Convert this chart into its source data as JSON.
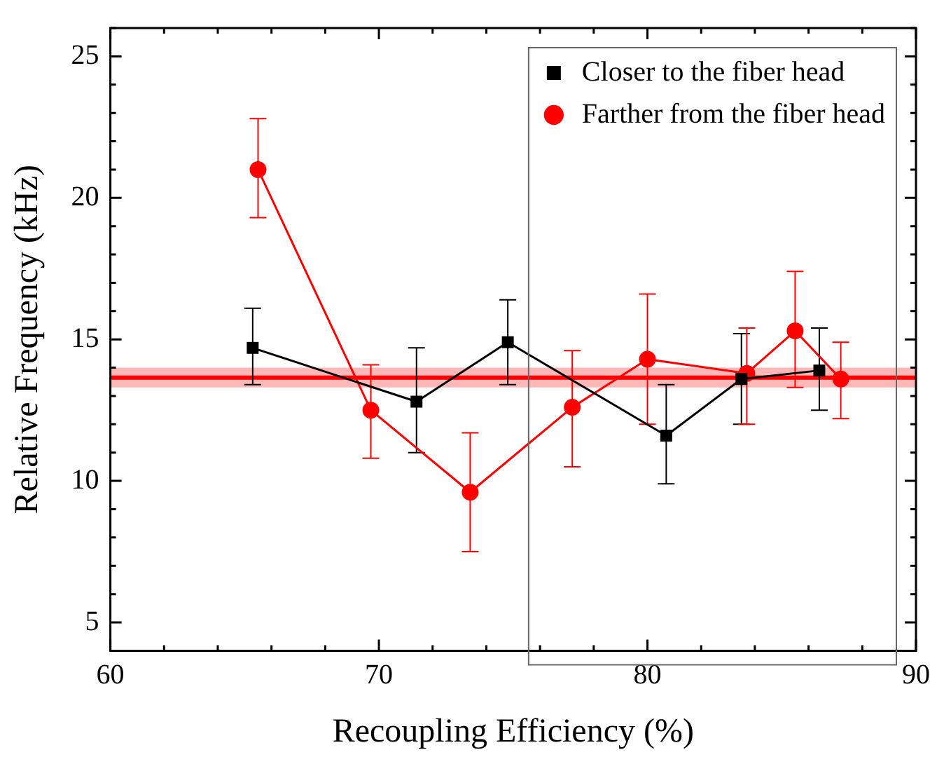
{
  "chart_data": {
    "type": "line",
    "xlabel": "Recoupling Efficiency (%)",
    "ylabel": "Relative Frequency (kHz)",
    "xlim": [
      60,
      90
    ],
    "xticks": [
      60,
      {
        "value": 62,
        "label": null
      },
      {
        "value": 64,
        "label": null
      },
      {
        "value": 66,
        "label": null
      },
      {
        "value": 68,
        "label": null
      },
      70,
      {
        "value": 72,
        "label": null
      },
      {
        "value": 74,
        "label": null
      },
      {
        "value": 76,
        "label": null
      },
      {
        "value": 78,
        "label": null
      },
      80,
      {
        "value": 82,
        "label": null
      },
      {
        "value": 84,
        "label": null
      },
      {
        "value": 86,
        "label": null
      },
      {
        "value": 88,
        "label": null
      },
      90
    ],
    "ylim": [
      4,
      26
    ],
    "yticks": [
      {
        "value": 4,
        "label": null
      },
      5,
      {
        "value": 6,
        "label": null
      },
      {
        "value": 7,
        "label": null
      },
      {
        "value": 8,
        "label": null
      },
      {
        "value": 9,
        "label": null
      },
      10,
      {
        "value": 11,
        "label": null
      },
      {
        "value": 12,
        "label": null
      },
      {
        "value": 13,
        "label": null
      },
      {
        "value": 14,
        "label": null
      },
      15,
      {
        "value": 16,
        "label": null
      },
      {
        "value": 17,
        "label": null
      },
      {
        "value": 18,
        "label": null
      },
      {
        "value": 19,
        "label": null
      },
      20,
      {
        "value": 21,
        "label": null
      },
      {
        "value": 22,
        "label": null
      },
      {
        "value": 23,
        "label": null
      },
      {
        "value": 24,
        "label": null
      },
      25,
      {
        "value": 26,
        "label": null
      }
    ],
    "grid": false,
    "legend": "top right",
    "line_style": "solid",
    "series": [
      {
        "name": "Closer to the fiber head",
        "color": "#000000",
        "marker": "square",
        "x": [
          65.3,
          71.4,
          74.8,
          80.7,
          83.5,
          86.4
        ],
        "values": [
          14.7,
          12.8,
          14.9,
          11.6,
          13.6,
          13.9
        ],
        "errors": [
          [
            13.4,
            16.1
          ],
          [
            11.0,
            14.7
          ],
          [
            13.4,
            16.4
          ],
          [
            9.9,
            13.4
          ],
          [
            12.0,
            15.2
          ],
          [
            12.5,
            15.4
          ]
        ]
      },
      {
        "name": "Farther from the fiber head",
        "color": "#ff0000",
        "marker": "circle",
        "x": [
          65.5,
          69.7,
          73.4,
          77.2,
          80.0,
          83.7,
          85.5,
          87.2
        ],
        "values": [
          21.0,
          12.5,
          9.6,
          12.6,
          14.3,
          13.8,
          15.3,
          13.6
        ],
        "errors": [
          [
            19.3,
            22.8
          ],
          [
            10.8,
            14.1
          ],
          [
            7.5,
            11.7
          ],
          [
            10.5,
            14.6
          ],
          [
            12.0,
            16.6
          ],
          [
            12.0,
            15.4
          ],
          [
            13.3,
            17.4
          ],
          [
            12.2,
            14.9
          ]
        ]
      }
    ],
    "bands": [
      {
        "axis": "y",
        "from": 13.3,
        "to": 14.0,
        "color": "#ffaaaa"
      }
    ],
    "ref_lines": [
      {
        "axis": "y",
        "value": 13.65,
        "color": "#ff0000"
      }
    ]
  }
}
